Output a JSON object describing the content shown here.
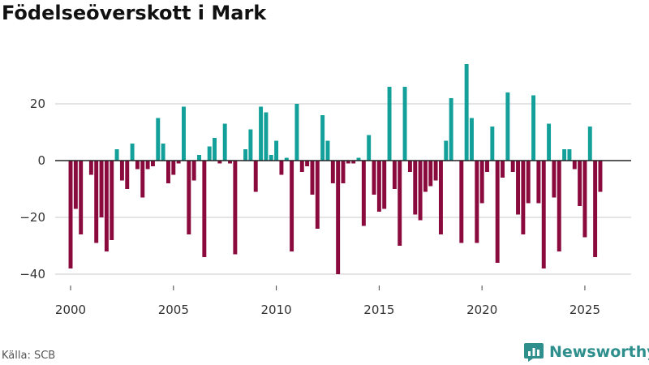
{
  "title": "Födelseöverskott i Mark",
  "source": "Källa: SCB",
  "brand": "Newsworthy",
  "colors": {
    "positive": "#14a09a",
    "negative": "#8a0a3e",
    "grid": "#dcdcdc",
    "zero": "#222222",
    "brand": "#2e8f8c"
  },
  "chart_data": {
    "type": "bar",
    "title": "Födelseöverskott i Mark",
    "xlabel": "",
    "ylabel": "",
    "x_start": 2000.0,
    "x_step": 0.25,
    "xlim": [
      1999.25,
      2027.25
    ],
    "ylim": [
      -42,
      38
    ],
    "yticks": [
      -40,
      -20,
      0,
      20
    ],
    "ytick_labels": [
      "−40",
      "−20",
      "0",
      "20"
    ],
    "xticks": [
      2000,
      2005,
      2010,
      2015,
      2020,
      2025
    ],
    "xtick_labels": [
      "2000",
      "2005",
      "2010",
      "2015",
      "2020",
      "2025"
    ],
    "values": [
      -38,
      -17,
      -26,
      0,
      -5,
      -29,
      -20,
      -32,
      -28,
      4,
      -7,
      -10,
      6,
      -3,
      -13,
      -3,
      -2,
      15,
      6,
      -8,
      -5,
      -1,
      19,
      -26,
      -7,
      2,
      -34,
      5,
      8,
      -1,
      13,
      -1,
      -33,
      0,
      4,
      11,
      -11,
      19,
      17,
      2,
      7,
      -5,
      1,
      -32,
      20,
      -4,
      -2,
      -12,
      -24,
      16,
      7,
      -8,
      -40,
      -8,
      -1,
      -1,
      1,
      -23,
      9,
      -12,
      -18,
      -17,
      26,
      -10,
      -30,
      26,
      -4,
      -19,
      -21,
      -11,
      -9,
      -7,
      -26,
      7,
      22,
      0,
      -29,
      34,
      15,
      -29,
      -15,
      -4,
      12,
      -36,
      -6,
      24,
      -4,
      -19,
      -26,
      -15,
      23,
      -15,
      -38,
      13,
      -13,
      -32,
      4,
      4,
      -3,
      -16,
      -27,
      12,
      -34,
      -11
    ]
  }
}
